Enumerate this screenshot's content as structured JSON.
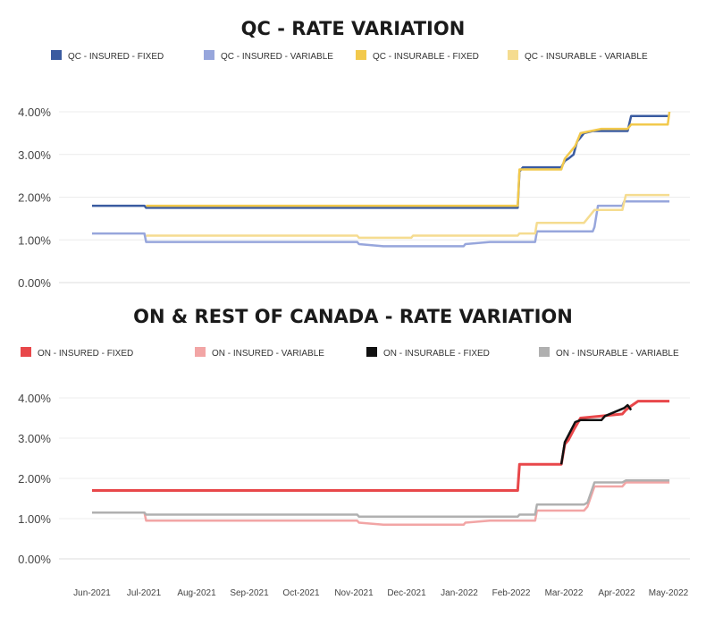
{
  "chart_data": [
    {
      "type": "line",
      "title": "QC - RATE VARIATION",
      "ylim": [
        0,
        4.2
      ],
      "y_ticks": [
        "0.00%",
        "1.00%",
        "2.00%",
        "3.00%",
        "4.00%"
      ],
      "y_tick_values": [
        0,
        1,
        2,
        3,
        4
      ],
      "x_ticks": [
        "Jun-2021",
        "Jul-2021",
        "Aug-2021",
        "Sep-2021",
        "Oct-2021",
        "Nov-2021",
        "Dec-2021",
        "Jan-2022",
        "Feb-2022",
        "Mar-2022",
        "Apr-2022",
        "May-2022"
      ],
      "grid": true,
      "legend_position": "top",
      "series": [
        {
          "name": "QC - INSURED - FIXED",
          "color": "#3a5ba0",
          "points": [
            [
              "2021-06-01",
              1.8
            ],
            [
              "2021-07-01",
              1.8
            ],
            [
              "2021-07-02",
              1.75
            ],
            [
              "2022-01-31",
              1.75
            ],
            [
              "2022-02-01",
              2.6
            ],
            [
              "2022-02-03",
              2.7
            ],
            [
              "2022-02-25",
              2.7
            ],
            [
              "2022-02-27",
              2.85
            ],
            [
              "2022-03-01",
              2.9
            ],
            [
              "2022-03-04",
              3.0
            ],
            [
              "2022-03-06",
              3.3
            ],
            [
              "2022-03-10",
              3.5
            ],
            [
              "2022-03-15",
              3.55
            ],
            [
              "2022-04-04",
              3.55
            ],
            [
              "2022-04-06",
              3.9
            ],
            [
              "2022-04-28",
              3.9
            ]
          ]
        },
        {
          "name": "QC - INSURED - VARIABLE",
          "color": "#97a6dc",
          "points": [
            [
              "2021-06-01",
              1.15
            ],
            [
              "2021-07-01",
              1.15
            ],
            [
              "2021-07-02",
              0.95
            ],
            [
              "2021-10-31",
              0.95
            ],
            [
              "2021-11-01",
              0.9
            ],
            [
              "2021-11-15",
              0.85
            ],
            [
              "2021-12-31",
              0.85
            ],
            [
              "2022-01-01",
              0.9
            ],
            [
              "2022-01-15",
              0.95
            ],
            [
              "2022-02-10",
              0.95
            ],
            [
              "2022-02-11",
              1.2
            ],
            [
              "2022-03-15",
              1.2
            ],
            [
              "2022-03-16",
              1.3
            ],
            [
              "2022-03-18",
              1.8
            ],
            [
              "2022-04-01",
              1.8
            ],
            [
              "2022-04-02",
              1.9
            ],
            [
              "2022-04-28",
              1.9
            ]
          ]
        },
        {
          "name": "QC - INSURABLE - FIXED",
          "color": "#f2c94c",
          "points": [
            [
              "2021-07-02",
              1.8
            ],
            [
              "2021-08-15",
              1.8
            ],
            [
              "2021-10-15",
              1.8
            ],
            [
              "2022-01-31",
              1.8
            ],
            [
              "2022-02-01",
              2.65
            ],
            [
              "2022-02-25",
              2.65
            ],
            [
              "2022-02-27",
              2.9
            ],
            [
              "2022-03-05",
              3.2
            ],
            [
              "2022-03-08",
              3.5
            ],
            [
              "2022-03-20",
              3.6
            ],
            [
              "2022-04-04",
              3.6
            ],
            [
              "2022-04-06",
              3.7
            ],
            [
              "2022-04-27",
              3.7
            ],
            [
              "2022-04-28",
              4.0
            ]
          ]
        },
        {
          "name": "QC - INSURABLE - VARIABLE",
          "color": "#f5dc90",
          "points": [
            [
              "2021-07-02",
              1.1
            ],
            [
              "2021-10-31",
              1.1
            ],
            [
              "2021-11-01",
              1.05
            ],
            [
              "2021-12-01",
              1.05
            ],
            [
              "2021-12-02",
              1.1
            ],
            [
              "2022-01-31",
              1.1
            ],
            [
              "2022-02-01",
              1.15
            ],
            [
              "2022-02-10",
              1.15
            ],
            [
              "2022-02-11",
              1.4
            ],
            [
              "2022-03-10",
              1.4
            ],
            [
              "2022-03-12",
              1.5
            ],
            [
              "2022-03-16",
              1.7
            ],
            [
              "2022-04-01",
              1.7
            ],
            [
              "2022-04-03",
              2.05
            ],
            [
              "2022-04-28",
              2.05
            ]
          ]
        }
      ]
    },
    {
      "type": "line",
      "title": "ON & REST OF CANADA - RATE VARIATION",
      "ylim": [
        0,
        4.2
      ],
      "y_ticks": [
        "0.00%",
        "1.00%",
        "2.00%",
        "3.00%",
        "4.00%"
      ],
      "y_tick_values": [
        0,
        1,
        2,
        3,
        4
      ],
      "x_ticks": [
        "Jun-2021",
        "Jul-2021",
        "Aug-2021",
        "Sep-2021",
        "Oct-2021",
        "Nov-2021",
        "Dec-2021",
        "Jan-2022",
        "Feb-2022",
        "Mar-2022",
        "Apr-2022",
        "May-2022"
      ],
      "grid": true,
      "legend_position": "top",
      "series": [
        {
          "name": "ON - INSURED - FIXED",
          "color": "#e8474a",
          "points": [
            [
              "2021-06-01",
              1.7
            ],
            [
              "2022-01-31",
              1.7
            ],
            [
              "2022-02-01",
              2.35
            ],
            [
              "2022-02-25",
              2.35
            ],
            [
              "2022-02-27",
              2.85
            ],
            [
              "2022-03-01",
              2.95
            ],
            [
              "2022-03-04",
              3.2
            ],
            [
              "2022-03-08",
              3.5
            ],
            [
              "2022-03-20",
              3.55
            ],
            [
              "2022-04-01",
              3.6
            ],
            [
              "2022-04-03",
              3.7
            ],
            [
              "2022-04-06",
              3.8
            ],
            [
              "2022-04-10",
              3.92
            ],
            [
              "2022-04-28",
              3.92
            ]
          ]
        },
        {
          "name": "ON - INSURED - VARIABLE",
          "color": "#f2a5a5",
          "points": [
            [
              "2021-06-01",
              1.15
            ],
            [
              "2021-07-01",
              1.15
            ],
            [
              "2021-07-02",
              0.95
            ],
            [
              "2021-10-31",
              0.95
            ],
            [
              "2021-11-01",
              0.9
            ],
            [
              "2021-11-15",
              0.85
            ],
            [
              "2021-12-31",
              0.85
            ],
            [
              "2022-01-01",
              0.9
            ],
            [
              "2022-01-15",
              0.95
            ],
            [
              "2022-02-10",
              0.95
            ],
            [
              "2022-02-11",
              1.2
            ],
            [
              "2022-03-10",
              1.2
            ],
            [
              "2022-03-12",
              1.3
            ],
            [
              "2022-03-16",
              1.8
            ],
            [
              "2022-04-01",
              1.8
            ],
            [
              "2022-04-03",
              1.9
            ],
            [
              "2022-04-28",
              1.9
            ]
          ]
        },
        {
          "name": "ON - INSURABLE - FIXED",
          "color": "#111111",
          "points": [
            [
              "2022-02-25",
              2.35
            ],
            [
              "2022-02-27",
              2.9
            ],
            [
              "2022-03-05",
              3.4
            ],
            [
              "2022-03-08",
              3.45
            ],
            [
              "2022-03-20",
              3.45
            ],
            [
              "2022-03-22",
              3.55
            ],
            [
              "2022-04-02",
              3.75
            ],
            [
              "2022-04-04",
              3.82
            ],
            [
              "2022-04-06",
              3.7
            ]
          ]
        },
        {
          "name": "ON - INSURABLE - VARIABLE",
          "color": "#b0b0b0",
          "points": [
            [
              "2021-06-01",
              1.15
            ],
            [
              "2021-07-01",
              1.15
            ],
            [
              "2021-07-02",
              1.1
            ],
            [
              "2021-10-31",
              1.1
            ],
            [
              "2021-11-01",
              1.05
            ],
            [
              "2022-01-31",
              1.05
            ],
            [
              "2022-02-01",
              1.1
            ],
            [
              "2022-02-10",
              1.1
            ],
            [
              "2022-02-11",
              1.35
            ],
            [
              "2022-03-10",
              1.35
            ],
            [
              "2022-03-12",
              1.4
            ],
            [
              "2022-03-16",
              1.9
            ],
            [
              "2022-04-01",
              1.9
            ],
            [
              "2022-04-03",
              1.95
            ],
            [
              "2022-04-28",
              1.95
            ]
          ]
        }
      ]
    }
  ]
}
